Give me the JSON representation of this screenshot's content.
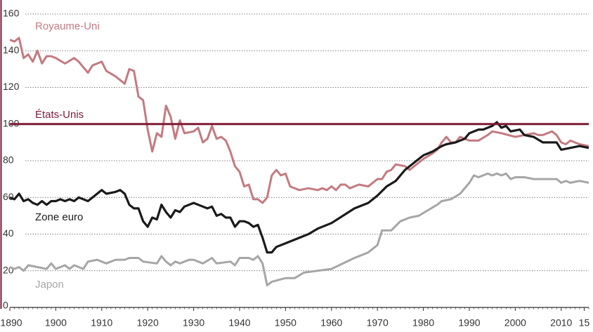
{
  "chart_data": {
    "type": "line",
    "xlim": [
      1890,
      2016
    ],
    "ylim": [
      0,
      160
    ],
    "yticks": [
      0,
      20,
      40,
      60,
      80,
      100,
      120,
      140,
      160
    ],
    "xticks": [
      1890,
      1900,
      1910,
      1920,
      1930,
      1940,
      1950,
      1960,
      1970,
      1980,
      1990,
      2000,
      2010,
      {
        "value": 2015,
        "label": "15"
      }
    ],
    "grid": true,
    "series": [
      {
        "name": "Royaume-Uni",
        "color": "#c47a80",
        "x": [
          1890,
          1891,
          1892,
          1893,
          1894,
          1895,
          1896,
          1897,
          1898,
          1899,
          1900,
          1902,
          1904,
          1905,
          1906,
          1907,
          1908,
          1910,
          1911,
          1913,
          1915,
          1916,
          1917,
          1918,
          1919,
          1920,
          1921,
          1922,
          1923,
          1924,
          1925,
          1926,
          1927,
          1928,
          1930,
          1931,
          1932,
          1933,
          1934,
          1935,
          1936,
          1937,
          1938,
          1939,
          1940,
          1941,
          1942,
          1943,
          1944,
          1945,
          1946,
          1947,
          1948,
          1949,
          1950,
          1951,
          1953,
          1955,
          1957,
          1958,
          1959,
          1960,
          1961,
          1962,
          1963,
          1964,
          1966,
          1968,
          1970,
          1971,
          1972,
          1973,
          1974,
          1976,
          1977,
          1978,
          1980,
          1982,
          1983,
          1984,
          1985,
          1986,
          1987,
          1988,
          1990,
          1992,
          1994,
          1995,
          1997,
          2000,
          2002,
          2004,
          2005,
          2006,
          2008,
          2009,
          2010,
          2011,
          2012,
          2014,
          2016
        ],
        "values": [
          146,
          145,
          147,
          136,
          138,
          134,
          140,
          133,
          137,
          137,
          136,
          133,
          136,
          134,
          131,
          128,
          132,
          134,
          129,
          126,
          122,
          130,
          129,
          115,
          113,
          97,
          85,
          95,
          93,
          110,
          104,
          92,
          102,
          95,
          96,
          98,
          90,
          92,
          99,
          92,
          93,
          91,
          85,
          77,
          74,
          66,
          67,
          59,
          59,
          57,
          60,
          72,
          75,
          72,
          73,
          66,
          64,
          65,
          64,
          65,
          64,
          66,
          64,
          67,
          67,
          65,
          67,
          66,
          70,
          70,
          74,
          75,
          78,
          77,
          75,
          77,
          81,
          84,
          86,
          90,
          93,
          90,
          90,
          93,
          91,
          91,
          94,
          96,
          95,
          93,
          94,
          95,
          94,
          94,
          96,
          94,
          90,
          89,
          91,
          89,
          88
        ]
      },
      {
        "name": "États-Unis",
        "color": "#7e1a35",
        "x": [
          1890,
          2016
        ],
        "values": [
          100,
          100
        ]
      },
      {
        "name": "Zone euro",
        "color": "#1a1a1a",
        "x": [
          1890,
          1891,
          1892,
          1893,
          1894,
          1895,
          1896,
          1897,
          1898,
          1899,
          1900,
          1901,
          1902,
          1903,
          1904,
          1905,
          1906,
          1907,
          1909,
          1910,
          1911,
          1913,
          1914,
          1915,
          1916,
          1917,
          1918,
          1919,
          1920,
          1921,
          1922,
          1923,
          1924,
          1925,
          1926,
          1927,
          1928,
          1930,
          1932,
          1933,
          1934,
          1935,
          1936,
          1937,
          1938,
          1939,
          1940,
          1941,
          1942,
          1943,
          1944,
          1945,
          1946,
          1947,
          1948,
          1950,
          1955,
          1957,
          1960,
          1965,
          1968,
          1970,
          1972,
          1974,
          1976,
          1978,
          1980,
          1982,
          1984,
          1985,
          1987,
          1989,
          1990,
          1992,
          1993,
          1995,
          1996,
          1997,
          1998,
          1999,
          2001,
          2002,
          2004,
          2006,
          2008,
          2009,
          2010,
          2012,
          2014,
          2016
        ],
        "values": [
          60,
          59,
          62,
          58,
          59,
          57,
          56,
          58,
          56,
          58,
          58,
          59,
          58,
          59,
          58,
          60,
          59,
          58,
          62,
          64,
          62,
          63,
          64,
          62,
          56,
          54,
          54,
          47,
          44,
          49,
          48,
          56,
          52,
          49,
          53,
          52,
          55,
          57,
          55,
          54,
          55,
          50,
          51,
          49,
          49,
          44,
          47,
          47,
          46,
          44,
          45,
          38,
          30,
          30,
          33,
          35,
          40,
          43,
          46,
          54,
          57,
          61,
          66,
          69,
          75,
          79,
          83,
          85,
          88,
          89,
          90,
          92,
          95,
          97,
          97,
          99,
          101,
          98,
          99,
          96,
          97,
          94,
          93,
          90,
          90,
          90,
          86,
          87,
          88,
          87
        ]
      },
      {
        "name": "Japon",
        "color": "#a6a6a6",
        "x": [
          1890,
          1891,
          1892,
          1893,
          1894,
          1896,
          1898,
          1899,
          1900,
          1902,
          1903,
          1904,
          1905,
          1906,
          1907,
          1909,
          1910,
          1911,
          1913,
          1915,
          1916,
          1918,
          1919,
          1922,
          1923,
          1924,
          1925,
          1926,
          1927,
          1928,
          1929,
          1930,
          1932,
          1934,
          1935,
          1938,
          1939,
          1940,
          1942,
          1943,
          1944,
          1945,
          1946,
          1947,
          1950,
          1952,
          1954,
          1960,
          1965,
          1968,
          1970,
          1971,
          1973,
          1975,
          1977,
          1979,
          1981,
          1983,
          1984,
          1986,
          1988,
          1990,
          1991,
          1992,
          1993,
          1994,
          1995,
          1996,
          1997,
          1998,
          1999,
          2000,
          2002,
          2004,
          2006,
          2009,
          2010,
          2011,
          2012,
          2014,
          2016
        ],
        "values": [
          22,
          21,
          22,
          20,
          23,
          22,
          21,
          24,
          21,
          23,
          21,
          23,
          22,
          21,
          25,
          26,
          25,
          24,
          26,
          26,
          27,
          27,
          25,
          24,
          28,
          25,
          23,
          25,
          24,
          25,
          26,
          26,
          24,
          27,
          24,
          25,
          23,
          27,
          27,
          26,
          28,
          24,
          12,
          14,
          16,
          16,
          19,
          21,
          27,
          30,
          34,
          42,
          42,
          47,
          49,
          50,
          53,
          56,
          58,
          59,
          62,
          68,
          72,
          71,
          72,
          73,
          72,
          73,
          72,
          73,
          70,
          71,
          71,
          70,
          70,
          70,
          68,
          69,
          68,
          69,
          68
        ]
      }
    ]
  }
}
